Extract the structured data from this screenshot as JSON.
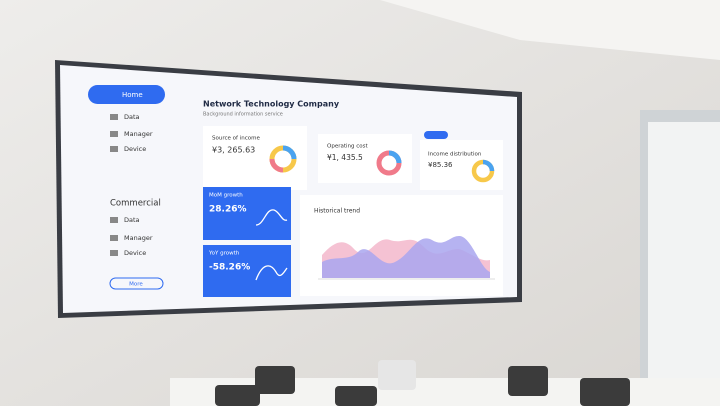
{
  "sidebar": {
    "home": "Home",
    "items": [
      "Data",
      "Manager",
      "Device"
    ],
    "section": "Commercial",
    "section_items": [
      "Data",
      "Manager",
      "Device"
    ],
    "button": "More"
  },
  "header": {
    "title": "Network Technology Company",
    "subtitle": "Background information service"
  },
  "cards": [
    {
      "title": "Source of income",
      "value": "¥3, 265.63"
    },
    {
      "title": "Operating cost",
      "value": "¥1, 435.5"
    },
    {
      "title": "Income distribution",
      "value": "¥85.36"
    }
  ],
  "growth": [
    {
      "title": "MoM growth",
      "value": "28.26%"
    },
    {
      "title": "YoY growth",
      "value": "-58.26%"
    }
  ],
  "trend": {
    "title": "Historical trend"
  }
}
